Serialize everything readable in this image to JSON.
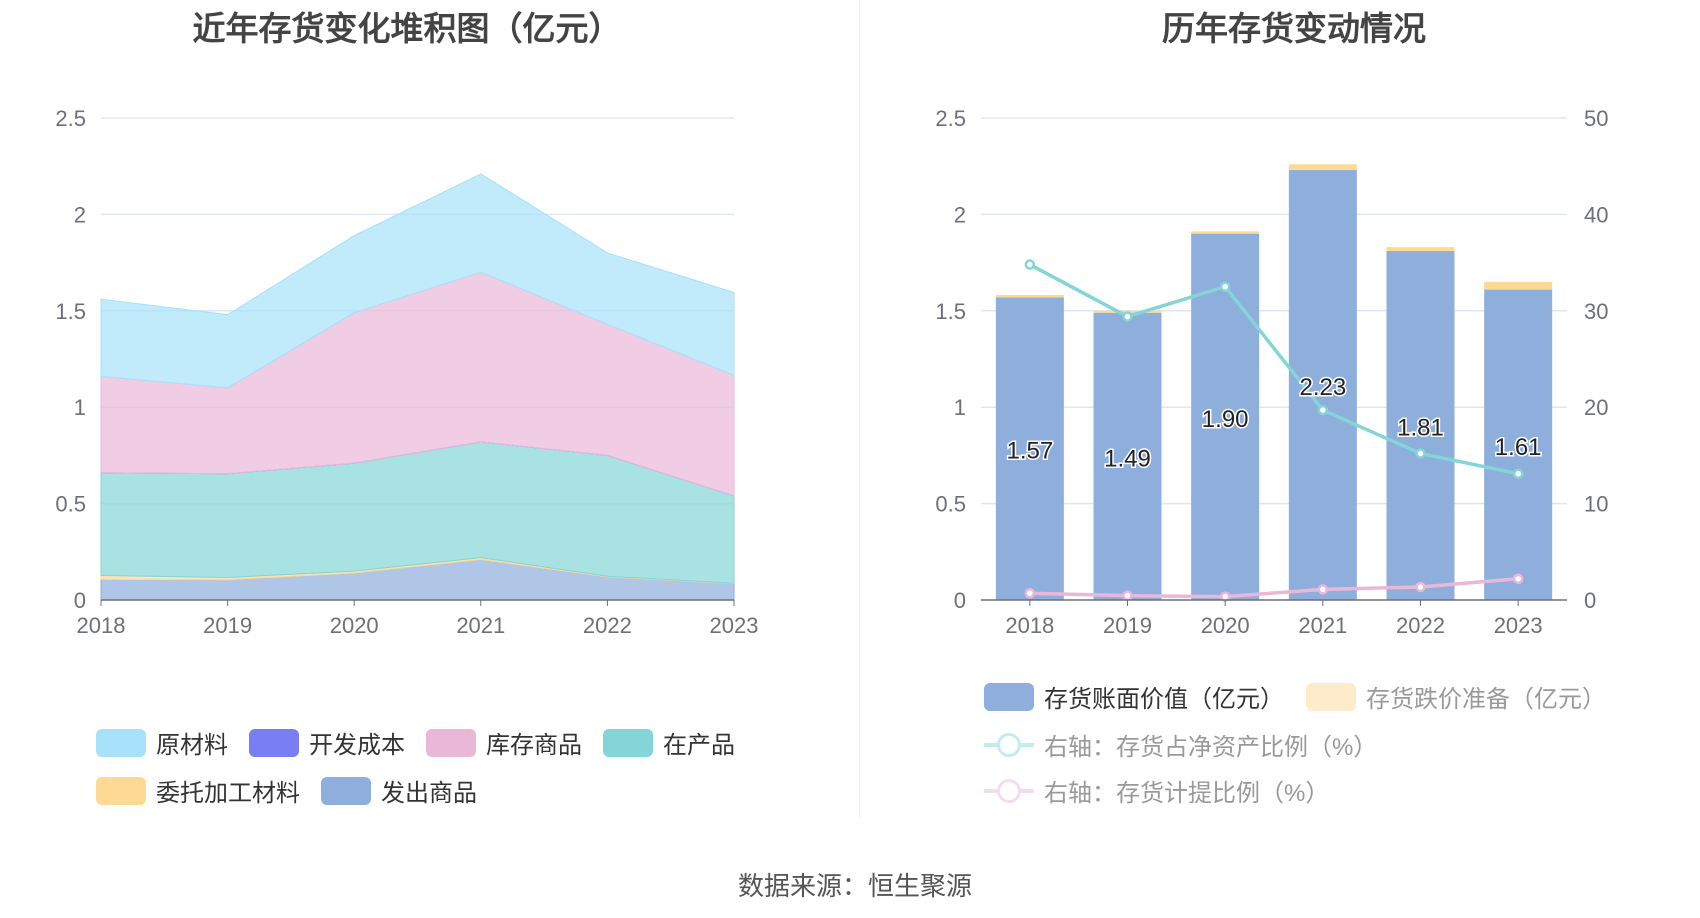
{
  "chart_data": [
    {
      "type": "area",
      "stacked": true,
      "title": "近年存货变化堆积图（亿元）",
      "categories": [
        "2018",
        "2019",
        "2020",
        "2021",
        "2022",
        "2023"
      ],
      "ylim": [
        0,
        2.5
      ],
      "yticks": [
        "0",
        "0.5",
        "1",
        "1.5",
        "2",
        "2.5"
      ],
      "grid": true,
      "legend_position": "bottom",
      "series": [
        {
          "name": "发出商品",
          "color": "#8eaedb",
          "values": [
            0.107,
            0.105,
            0.14,
            0.21,
            0.12,
            0.085
          ]
        },
        {
          "name": "委托加工材料",
          "color": "#fed994",
          "values": [
            0.02,
            0.012,
            0.01,
            0.01,
            0.003,
            0.002
          ]
        },
        {
          "name": "在产品",
          "color": "#84d5d7",
          "values": [
            0.533,
            0.538,
            0.56,
            0.6,
            0.627,
            0.453
          ]
        },
        {
          "name": "开发成本",
          "color": "#7a7ef4",
          "values": [
            0,
            0,
            0,
            0,
            0,
            0
          ]
        },
        {
          "name": "库存商品",
          "color": "#e9b8d8",
          "values": [
            0.5,
            0.445,
            0.78,
            0.88,
            0.68,
            0.625
          ]
        },
        {
          "name": "原材料",
          "color": "#a7e1fa",
          "values": [
            0.4,
            0.38,
            0.4,
            0.51,
            0.37,
            0.43
          ]
        }
      ],
      "legend_order": [
        "原材料",
        "开发成本",
        "库存商品",
        "在产品",
        "委托加工材料",
        "发出商品"
      ]
    },
    {
      "type": "bar",
      "stacked": true,
      "title": "历年存货变动情况",
      "categories": [
        "2018",
        "2019",
        "2020",
        "2021",
        "2022",
        "2023"
      ],
      "ylim": [
        0,
        2.5
      ],
      "yticks": [
        "0",
        "0.5",
        "1",
        "1.5",
        "2",
        "2.5"
      ],
      "y2lim": [
        0,
        50
      ],
      "y2ticks": [
        "0",
        "10",
        "20",
        "30",
        "40",
        "50"
      ],
      "grid": true,
      "legend_position": "bottom",
      "bars": [
        {
          "name": "存货账面价值（亿元）",
          "color": "#8eaedb",
          "values": [
            1.57,
            1.49,
            1.9,
            2.23,
            1.81,
            1.61
          ],
          "labels": [
            "1.57",
            "1.49",
            "1.90",
            "2.23",
            "1.81",
            "1.61"
          ]
        },
        {
          "name": "存货跌价准备（亿元）",
          "color": "#fed994",
          "legend_color": "#feebc9",
          "values": [
            0.012,
            0.01,
            0.012,
            0.03,
            0.02,
            0.04
          ]
        }
      ],
      "lines": [
        {
          "name": "右轴：存货占净资产比例（%）",
          "color": "#84d5d7",
          "values": [
            34.8,
            29.4,
            32.5,
            19.7,
            15.2,
            13.1
          ]
        },
        {
          "name": "右轴：存货计提比例（%）",
          "color": "#e9b8d8",
          "values": [
            0.7,
            0.45,
            0.35,
            1.1,
            1.35,
            2.2
          ]
        }
      ]
    }
  ],
  "source": "数据来源：恒生聚源"
}
